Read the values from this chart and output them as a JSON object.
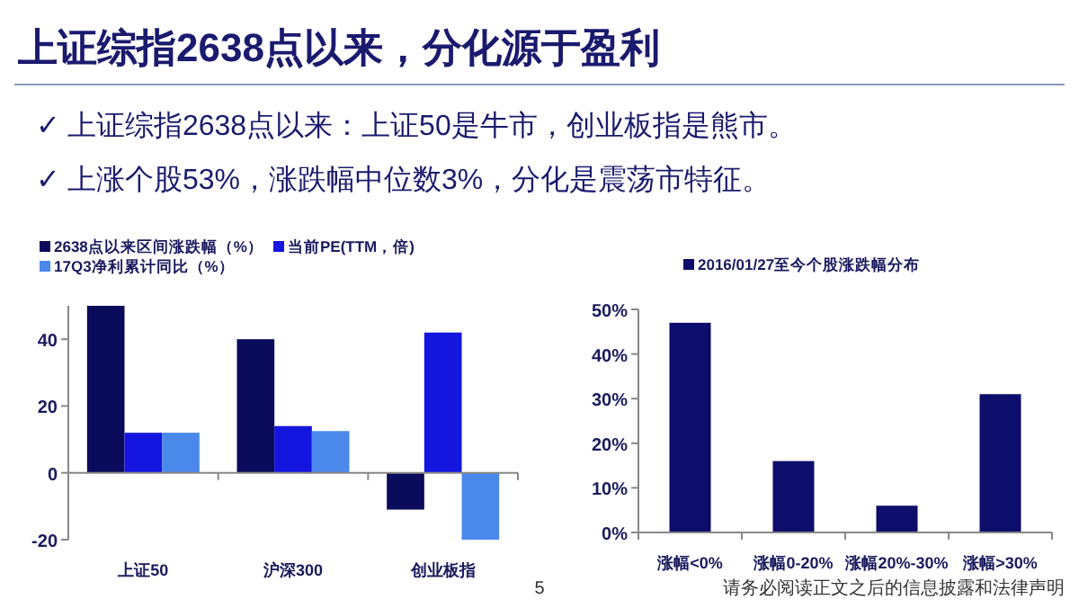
{
  "chart_data": [
    {
      "type": "other",
      "title": "上证综指2638点以来，分化源于盈利",
      "annotations": [
        "✓ 上证综指2638点以来：上证50是牛市，创业板指是熊市。",
        "✓ 上涨个股53%，涨跌幅中位数3%，分化是震荡市特征。",
        "5",
        "请务必阅读正文之后的信息披露和法律声明"
      ]
    },
    {
      "type": "bar",
      "categories": [
        "上证50",
        "沪深300",
        "创业板指"
      ],
      "series": [
        {
          "name": "2638点以来区间涨跌幅（%）",
          "color": "#0b0b5c",
          "values": [
            50,
            40,
            -11
          ]
        },
        {
          "name": "当前PE(TTM，倍)",
          "color": "#1515e0",
          "values": [
            12,
            14,
            42
          ]
        },
        {
          "name": "17Q3净利累计同比（%）",
          "color": "#4a88ec",
          "values": [
            12,
            12.5,
            -20
          ]
        }
      ],
      "ylim": [
        -20,
        50
      ],
      "yticks": [
        -20,
        0,
        20,
        40
      ],
      "legend": "top"
    },
    {
      "type": "bar",
      "categories": [
        "涨幅<0%",
        "涨幅0-20%",
        "涨幅20%-30%",
        "涨幅>30%"
      ],
      "series": [
        {
          "name": "2016/01/27至今个股涨跌幅分布",
          "color": "#0d0d6b",
          "values": [
            47,
            16,
            6,
            31
          ]
        }
      ],
      "ylim": [
        0,
        50
      ],
      "yticks": [
        {
          "value": 0,
          "label": "0%"
        },
        {
          "value": 10,
          "label": "10%"
        },
        {
          "value": 20,
          "label": "20%"
        },
        {
          "value": 30,
          "label": "30%"
        },
        {
          "value": 40,
          "label": "40%"
        },
        {
          "value": 50,
          "label": "50%"
        }
      ],
      "legend": "top"
    }
  ]
}
